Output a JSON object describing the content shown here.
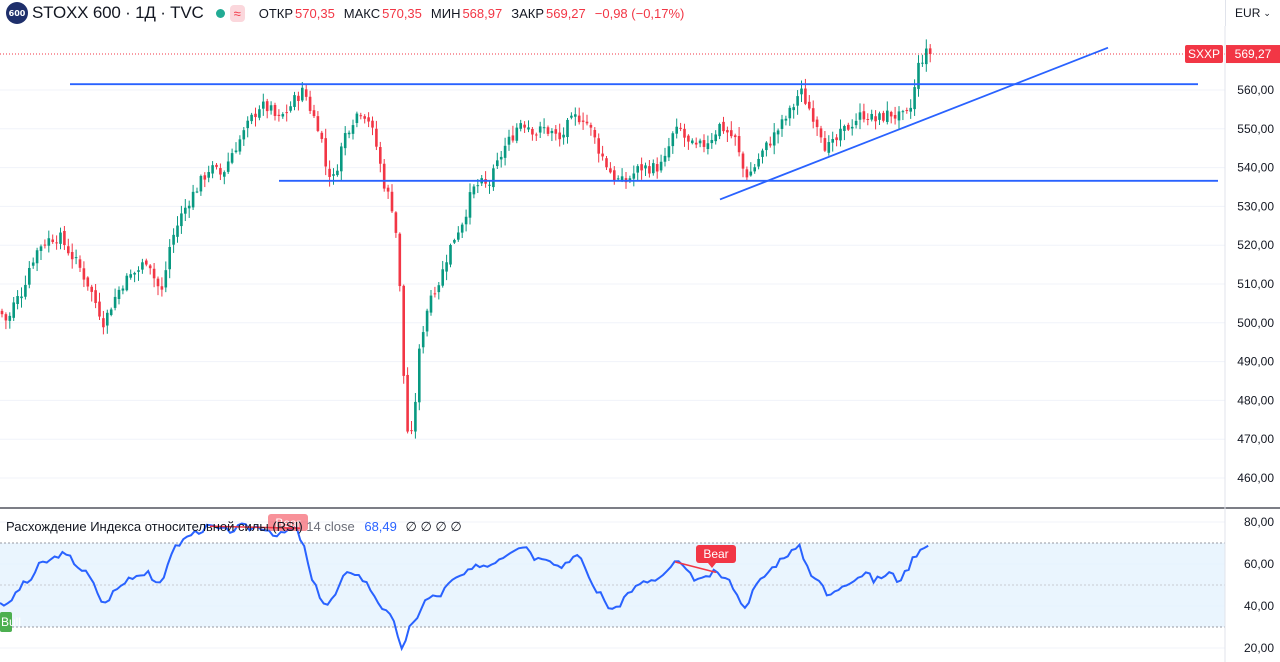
{
  "header": {
    "logo_text": "600",
    "title": "STOXX 600 · 1Д · TVC",
    "approx_symbol": "≈",
    "open_label": "ОТКР",
    "open_value": "570,35",
    "high_label": "МАКС",
    "high_value": "570,35",
    "low_label": "МИН",
    "low_value": "568,97",
    "close_label": "ЗАКР",
    "close_value": "569,27",
    "change": "−0,98 (−0,17%)",
    "currency": "EUR"
  },
  "price_axis": {
    "ticks": [
      "560,00",
      "550,00",
      "540,00",
      "530,00",
      "520,00",
      "510,00",
      "500,00",
      "490,00",
      "480,00",
      "470,00",
      "460,00"
    ],
    "symbol_tag": "SXXP",
    "last_price_tag": "569,27"
  },
  "rsi_panel": {
    "name": "Расхождение Индекса относительной силы (RSI)",
    "params": "14 close",
    "value": "68,49",
    "zeros": "∅ ∅ ∅ ∅",
    "ticks": [
      "80,00",
      "60,00",
      "40,00",
      "20,00"
    ],
    "bear_label_1": "Bear",
    "bear_label_2": "Bear",
    "bull_label": "Bull"
  },
  "colors": {
    "up": "#089981",
    "down": "#f23645",
    "trendline": "#2962ff",
    "rsi_line": "#2962ff",
    "rsi_band": "#e3f2fd",
    "bear": "#f23645",
    "bull": "#4caf50"
  },
  "chart_data": {
    "type": "candlestick",
    "price_axis_range": [
      455,
      575
    ],
    "rsi_axis_range": [
      18,
      82
    ],
    "last_price": 569.27,
    "price_path": [
      [
        0,
        503
      ],
      [
        8,
        500
      ],
      [
        14,
        505
      ],
      [
        22,
        508
      ],
      [
        30,
        515
      ],
      [
        40,
        520
      ],
      [
        52,
        522
      ],
      [
        60,
        522
      ],
      [
        70,
        518
      ],
      [
        80,
        514
      ],
      [
        88,
        510
      ],
      [
        96,
        505
      ],
      [
        104,
        500
      ],
      [
        112,
        505
      ],
      [
        122,
        510
      ],
      [
        130,
        512
      ],
      [
        140,
        514
      ],
      [
        148,
        517
      ],
      [
        156,
        510
      ],
      [
        162,
        508
      ],
      [
        170,
        520
      ],
      [
        180,
        527
      ],
      [
        190,
        532
      ],
      [
        200,
        536
      ],
      [
        210,
        540
      ],
      [
        222,
        538
      ],
      [
        232,
        544
      ],
      [
        242,
        548
      ],
      [
        250,
        552
      ],
      [
        260,
        556
      ],
      [
        270,
        555
      ],
      [
        278,
        552
      ],
      [
        288,
        555
      ],
      [
        296,
        558
      ],
      [
        304,
        560
      ],
      [
        312,
        554
      ],
      [
        320,
        550
      ],
      [
        326,
        540
      ],
      [
        334,
        537
      ],
      [
        344,
        548
      ],
      [
        352,
        552
      ],
      [
        360,
        555
      ],
      [
        368,
        553
      ],
      [
        376,
        546
      ],
      [
        384,
        536
      ],
      [
        392,
        530
      ],
      [
        398,
        520
      ],
      [
        402,
        495
      ],
      [
        406,
        475
      ],
      [
        410,
        468
      ],
      [
        414,
        475
      ],
      [
        418,
        490
      ],
      [
        424,
        500
      ],
      [
        430,
        507
      ],
      [
        440,
        511
      ],
      [
        448,
        518
      ],
      [
        456,
        523
      ],
      [
        464,
        527
      ],
      [
        472,
        534
      ],
      [
        480,
        536
      ],
      [
        488,
        535
      ],
      [
        496,
        540
      ],
      [
        504,
        545
      ],
      [
        512,
        548
      ],
      [
        520,
        552
      ],
      [
        528,
        551
      ],
      [
        536,
        549
      ],
      [
        544,
        550
      ],
      [
        552,
        549
      ],
      [
        560,
        547
      ],
      [
        568,
        551
      ],
      [
        576,
        553
      ],
      [
        584,
        553
      ],
      [
        592,
        549
      ],
      [
        600,
        544
      ],
      [
        608,
        540
      ],
      [
        616,
        537
      ],
      [
        624,
        536
      ],
      [
        632,
        538
      ],
      [
        640,
        540
      ],
      [
        648,
        540
      ],
      [
        656,
        540
      ],
      [
        664,
        541
      ],
      [
        672,
        548
      ],
      [
        680,
        550
      ],
      [
        688,
        546
      ],
      [
        696,
        545
      ],
      [
        704,
        546
      ],
      [
        712,
        548
      ],
      [
        720,
        551
      ],
      [
        728,
        549
      ],
      [
        736,
        547
      ],
      [
        742,
        540
      ],
      [
        748,
        538
      ],
      [
        754,
        540
      ],
      [
        760,
        543
      ],
      [
        768,
        546
      ],
      [
        776,
        549
      ],
      [
        784,
        552
      ],
      [
        792,
        555
      ],
      [
        800,
        560
      ],
      [
        806,
        557
      ],
      [
        812,
        554
      ],
      [
        820,
        550
      ],
      [
        826,
        545
      ],
      [
        834,
        546
      ],
      [
        842,
        549
      ],
      [
        850,
        551
      ],
      [
        858,
        553
      ],
      [
        866,
        554
      ],
      [
        874,
        552
      ],
      [
        882,
        553
      ],
      [
        890,
        554
      ],
      [
        898,
        553
      ],
      [
        906,
        553
      ],
      [
        912,
        556
      ],
      [
        918,
        566
      ],
      [
        924,
        569
      ],
      [
        930,
        570
      ],
      [
        934,
        569.27
      ]
    ],
    "rsi_path": [
      [
        0,
        42
      ],
      [
        8,
        40
      ],
      [
        14,
        45
      ],
      [
        22,
        50
      ],
      [
        30,
        52
      ],
      [
        40,
        60
      ],
      [
        52,
        62
      ],
      [
        60,
        65
      ],
      [
        70,
        63
      ],
      [
        80,
        58
      ],
      [
        88,
        55
      ],
      [
        96,
        48
      ],
      [
        104,
        40
      ],
      [
        112,
        46
      ],
      [
        122,
        50
      ],
      [
        130,
        54
      ],
      [
        140,
        55
      ],
      [
        148,
        57
      ],
      [
        156,
        50
      ],
      [
        162,
        50
      ],
      [
        170,
        65
      ],
      [
        180,
        70
      ],
      [
        190,
        74
      ],
      [
        200,
        76
      ],
      [
        210,
        78
      ],
      [
        222,
        76
      ],
      [
        232,
        76
      ],
      [
        242,
        78
      ],
      [
        250,
        77
      ],
      [
        260,
        78
      ],
      [
        270,
        76
      ],
      [
        278,
        73
      ],
      [
        288,
        76
      ],
      [
        296,
        77
      ],
      [
        304,
        68
      ],
      [
        312,
        52
      ],
      [
        320,
        45
      ],
      [
        326,
        40
      ],
      [
        334,
        44
      ],
      [
        344,
        54
      ],
      [
        352,
        57
      ],
      [
        360,
        54
      ],
      [
        368,
        50
      ],
      [
        376,
        44
      ],
      [
        384,
        38
      ],
      [
        392,
        34
      ],
      [
        398,
        26
      ],
      [
        402,
        20
      ],
      [
        406,
        23
      ],
      [
        410,
        30
      ],
      [
        414,
        32
      ],
      [
        418,
        36
      ],
      [
        424,
        42
      ],
      [
        430,
        44
      ],
      [
        440,
        45
      ],
      [
        448,
        50
      ],
      [
        456,
        53
      ],
      [
        464,
        55
      ],
      [
        472,
        57
      ],
      [
        480,
        60
      ],
      [
        488,
        59
      ],
      [
        496,
        62
      ],
      [
        504,
        64
      ],
      [
        512,
        67
      ],
      [
        520,
        69
      ],
      [
        528,
        68
      ],
      [
        536,
        62
      ],
      [
        544,
        64
      ],
      [
        552,
        62
      ],
      [
        560,
        58
      ],
      [
        568,
        62
      ],
      [
        576,
        64
      ],
      [
        584,
        60
      ],
      [
        592,
        50
      ],
      [
        600,
        46
      ],
      [
        608,
        40
      ],
      [
        616,
        38
      ],
      [
        624,
        44
      ],
      [
        632,
        48
      ],
      [
        640,
        50
      ],
      [
        648,
        52
      ],
      [
        656,
        52
      ],
      [
        664,
        54
      ],
      [
        672,
        60
      ],
      [
        680,
        61
      ],
      [
        688,
        55
      ],
      [
        696,
        53
      ],
      [
        704,
        52
      ],
      [
        712,
        56
      ],
      [
        720,
        55
      ],
      [
        728,
        52
      ],
      [
        736,
        48
      ],
      [
        742,
        39
      ],
      [
        748,
        42
      ],
      [
        754,
        48
      ],
      [
        760,
        52
      ],
      [
        768,
        56
      ],
      [
        776,
        60
      ],
      [
        784,
        64
      ],
      [
        792,
        66
      ],
      [
        800,
        68
      ],
      [
        806,
        60
      ],
      [
        812,
        55
      ],
      [
        820,
        52
      ],
      [
        826,
        45
      ],
      [
        834,
        46
      ],
      [
        842,
        50
      ],
      [
        850,
        52
      ],
      [
        858,
        54
      ],
      [
        866,
        56
      ],
      [
        874,
        52
      ],
      [
        882,
        54
      ],
      [
        890,
        56
      ],
      [
        898,
        52
      ],
      [
        906,
        56
      ],
      [
        912,
        62
      ],
      [
        918,
        66
      ],
      [
        924,
        69
      ],
      [
        930,
        68.49
      ]
    ],
    "trendlines": [
      {
        "x0": 70,
        "y0": 561.5,
        "x1": 1198,
        "y1": 561.5
      },
      {
        "x0": 279,
        "y0": 536.6,
        "x1": 1218,
        "y1": 536.6
      },
      {
        "x0": 720,
        "y0": 531.8,
        "x1": 1108,
        "y1": 570.9
      }
    ]
  }
}
